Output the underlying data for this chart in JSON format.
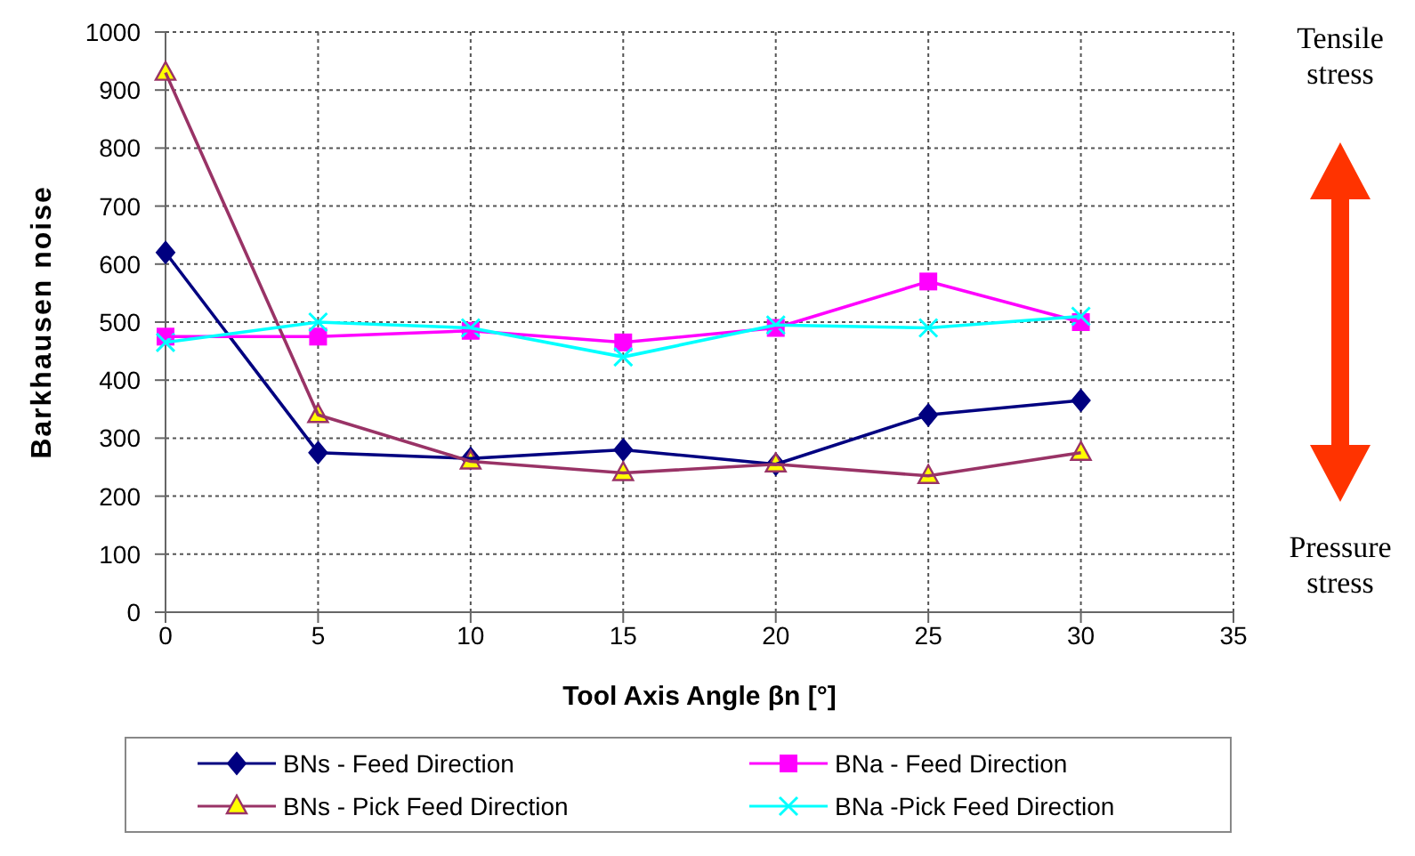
{
  "chart_data": {
    "type": "line",
    "xlabel": "Tool Axis Angle  βn [°]",
    "ylabel": "Barkhausen noise",
    "x": [
      0,
      5,
      10,
      15,
      20,
      25,
      30
    ],
    "xlim": [
      0,
      35
    ],
    "xticks": [
      0,
      5,
      10,
      15,
      20,
      25,
      30,
      35
    ],
    "ylim": [
      0,
      1000
    ],
    "yticks": [
      0,
      100,
      200,
      300,
      400,
      500,
      600,
      700,
      800,
      900,
      1000
    ],
    "grid": true,
    "legend": "bottom",
    "series": [
      {
        "name": "BNs - Feed Direction",
        "color": "#000080",
        "marker": "diamond",
        "values": [
          620,
          275,
          265,
          280,
          255,
          340,
          365
        ]
      },
      {
        "name": "BNa - Feed Direction",
        "color": "#ff00ff",
        "marker": "square",
        "values": [
          475,
          475,
          485,
          465,
          490,
          570,
          500
        ]
      },
      {
        "name": "BNs - Pick Feed Direction",
        "color": "#993366",
        "marker": "triangle",
        "values": [
          930,
          340,
          260,
          240,
          255,
          235,
          275
        ]
      },
      {
        "name": "BNa -Pick Feed Direction",
        "color": "#00ffff",
        "marker": "cross",
        "values": [
          465,
          500,
          490,
          440,
          495,
          490,
          510
        ]
      }
    ],
    "annotations": [
      "Tensile stress",
      "Pressure stress"
    ]
  }
}
